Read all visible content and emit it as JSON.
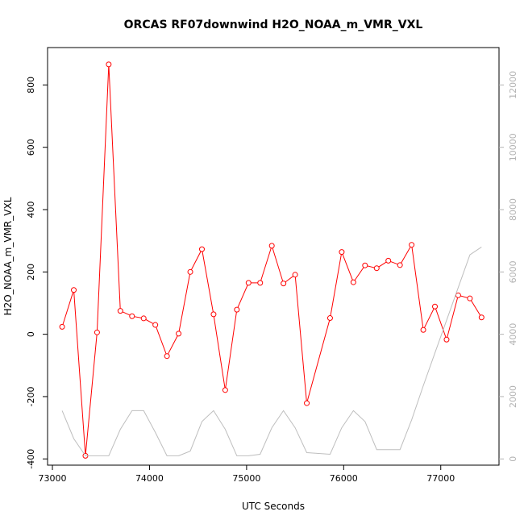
{
  "chart_data": {
    "type": "line",
    "title": "ORCAS RF07downwind H2O_NOAA_m_VMR_VXL",
    "xlabel": "UTC Seconds",
    "ylabel": "H2O_NOAA_m_VMR_VXL",
    "xlim": [
      72950,
      77600
    ],
    "ylim": [
      -420,
      920
    ],
    "y2lim": [
      -200,
      13200
    ],
    "x_ticks": [
      73000,
      74000,
      75000,
      76000,
      77000
    ],
    "y_ticks": [
      -400,
      -200,
      0,
      200,
      400,
      600,
      800
    ],
    "y2_ticks": [
      0,
      2000,
      4000,
      6000,
      8000,
      10000,
      12000
    ],
    "colors": {
      "primary": "#ff0000",
      "secondary": "#bebebe",
      "axis": "#000000",
      "right_axis": "#b3b3b3"
    },
    "series": [
      {
        "axis": "left",
        "style": "line+points",
        "x": [
          73100,
          73220,
          73340,
          73460,
          73580,
          73700,
          73820,
          73940,
          74060,
          74180,
          74300,
          74420,
          74540,
          74660,
          74780,
          74900,
          75020,
          75140,
          75260,
          75380,
          75500,
          75620,
          75860,
          75980,
          76100,
          76220,
          76340,
          76460,
          76580,
          76700,
          76820,
          76940,
          77060,
          77180,
          77300,
          77420
        ],
        "values": [
          24,
          142,
          -390,
          6,
          866,
          75,
          58,
          51,
          30,
          -70,
          2,
          200,
          273,
          64,
          -179,
          79,
          165,
          165,
          284,
          163,
          191,
          -221,
          52,
          264,
          167,
          221,
          212,
          236,
          222,
          287,
          14,
          89,
          -17,
          125,
          115,
          54
        ]
      },
      {
        "axis": "right",
        "style": "line",
        "x": [
          73100,
          73220,
          73340,
          73460,
          73580,
          73700,
          73820,
          73940,
          74060,
          74180,
          74300,
          74420,
          74540,
          74660,
          74780,
          74900,
          75020,
          75140,
          75260,
          75380,
          75500,
          75620,
          75860,
          75980,
          76100,
          76220,
          76340,
          76460,
          76580,
          76700,
          76820,
          76940,
          77060,
          77180,
          77300,
          77420
        ],
        "values": [
          1550,
          650,
          100,
          100,
          100,
          950,
          1550,
          1550,
          850,
          100,
          100,
          250,
          1200,
          1550,
          950,
          100,
          100,
          150,
          1000,
          1550,
          1000,
          200,
          150,
          1000,
          1550,
          1200,
          300,
          300,
          300,
          1250,
          2350,
          3400,
          4450,
          5500,
          6550,
          6800
        ]
      }
    ]
  }
}
